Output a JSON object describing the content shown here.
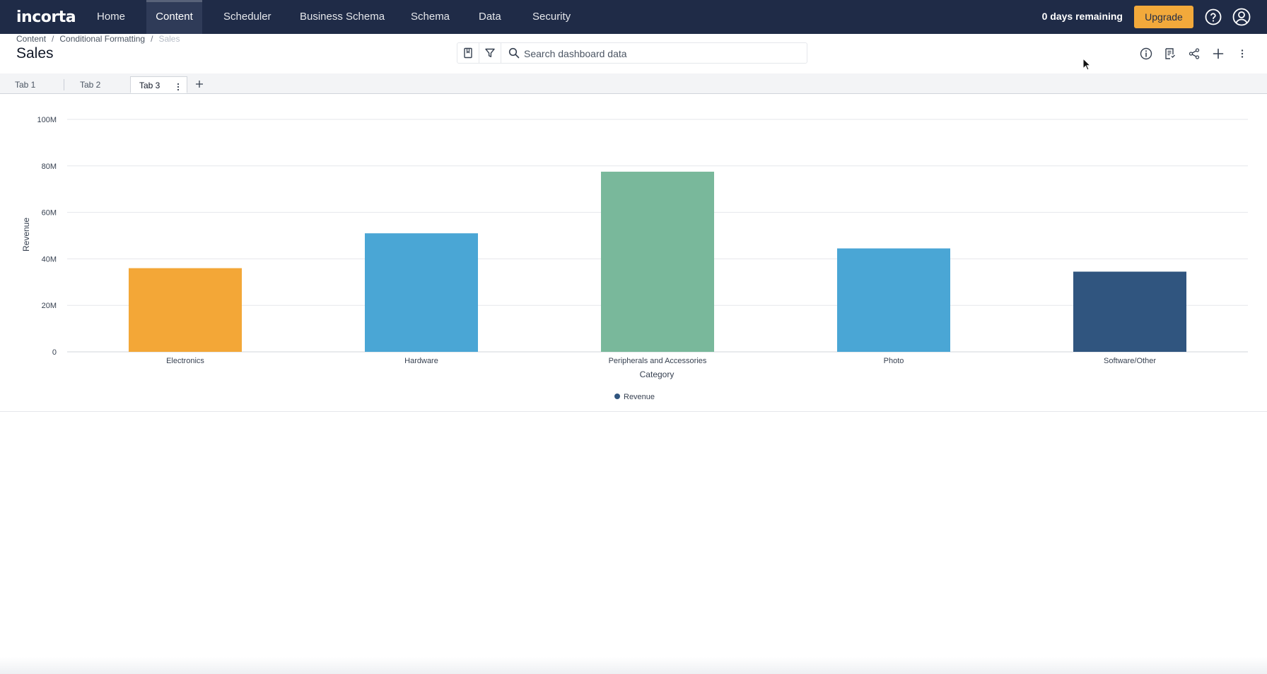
{
  "app": {
    "logo": "incorta"
  },
  "nav": {
    "items": [
      {
        "label": "Home",
        "active": false
      },
      {
        "label": "Content",
        "active": true
      },
      {
        "label": "Scheduler",
        "active": false
      },
      {
        "label": "Business Schema",
        "active": false
      },
      {
        "label": "Schema",
        "active": false
      },
      {
        "label": "Data",
        "active": false
      },
      {
        "label": "Security",
        "active": false
      }
    ],
    "days_remaining": "0 days remaining",
    "upgrade_label": "Upgrade",
    "help_icon": "help-icon",
    "user_icon": "user-icon"
  },
  "breadcrumb": [
    "Content",
    "Conditional Formatting",
    "Sales"
  ],
  "page": {
    "title": "Sales"
  },
  "search": {
    "placeholder": "Search dashboard data"
  },
  "tabs": [
    {
      "label": "Tab 1",
      "active": false
    },
    {
      "label": "Tab 2",
      "active": false
    },
    {
      "label": "Tab 3",
      "active": true
    }
  ],
  "colors": {
    "nav_bg": "#1f2b47",
    "upgrade": "#f2a93b"
  },
  "chart_data": {
    "type": "bar",
    "categories": [
      "Electronics",
      "Hardware",
      "Peripherals and Accessories",
      "Photo",
      "Software/Other"
    ],
    "series": [
      {
        "name": "Revenue",
        "values": [
          36,
          51,
          77.5,
          44.5,
          34.5
        ]
      }
    ],
    "bar_colors": [
      "#f3a737",
      "#4aa6d5",
      "#79b89b",
      "#4aa6d5",
      "#30557f"
    ],
    "legend_color": "#30557f",
    "y_unit": "M",
    "yticks": [
      "0",
      "20M",
      "40M",
      "60M",
      "80M",
      "100M"
    ],
    "ylim": [
      0,
      100
    ],
    "xlabel": "Category",
    "ylabel": "Revenue",
    "legend_position": "bottom-center",
    "grid": true
  }
}
